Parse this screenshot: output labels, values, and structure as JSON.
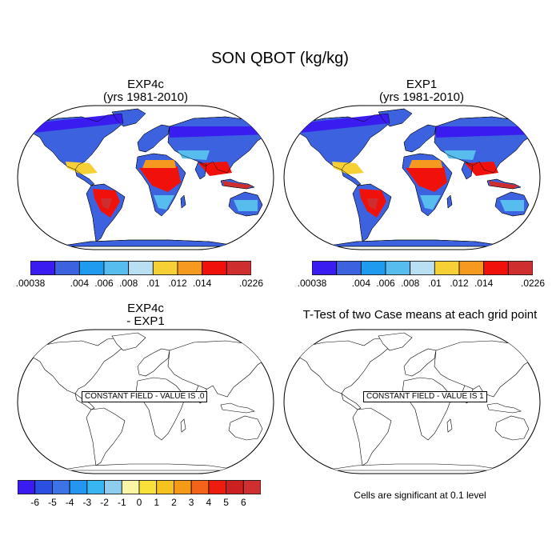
{
  "figure": {
    "title": "SON QBOT (kg/kg)"
  },
  "panels": [
    {
      "id": "exp4c",
      "title_line1": "EXP4c",
      "title_line2": "(yrs 1981-2010)",
      "field": "filled"
    },
    {
      "id": "exp1",
      "title_line1": "EXP1",
      "title_line2": "(yrs 1981-2010)",
      "field": "filled"
    },
    {
      "id": "diff",
      "title_line1": "EXP4c",
      "title_line2": "- EXP1",
      "field": "constant",
      "constant_label": "CONSTANT FIELD - VALUE IS .0"
    },
    {
      "id": "ttest",
      "title_line1": "T-Test of two Case means at each grid point",
      "title_line2": "",
      "field": "constant",
      "constant_label": "CONSTANT FIELD - VALUE IS 1"
    }
  ],
  "colorbars": {
    "qbot": {
      "colors": [
        "#3a1cf0",
        "#3c62e0",
        "#1e9bef",
        "#56bdee",
        "#b8dff2",
        "#f7d035",
        "#f59a1e",
        "#f0120a",
        "#cf2e2e"
      ],
      "labels": [
        ".00038",
        ".004",
        ".006",
        ".008",
        ".01",
        ".012",
        ".014",
        ".0226"
      ],
      "label_edges": [
        0,
        2,
        3,
        4,
        5,
        6,
        7,
        9
      ]
    },
    "diff": {
      "colors": [
        "#3a1cf0",
        "#2b4fe3",
        "#3c73e6",
        "#2596ef",
        "#38b6f2",
        "#8ecdf0",
        "#fbf6a6",
        "#f8e23a",
        "#f6c21e",
        "#f59a17",
        "#f4631a",
        "#ee1c0e",
        "#cc1f1f",
        "#d02f2f"
      ],
      "labels": [
        "-6",
        "-5",
        "-4",
        "-3",
        "-2",
        "-1",
        "0",
        "1",
        "2",
        "3",
        "4",
        "5",
        "6"
      ]
    }
  },
  "notes": {
    "significance": "Cells are significant at 0.1 level"
  }
}
